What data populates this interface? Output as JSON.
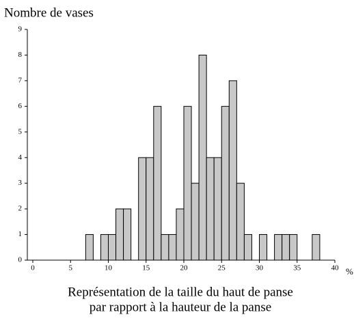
{
  "chart_data": {
    "type": "histogram",
    "ylabel": "Nombre de vases",
    "x_unit": "%",
    "xlabel": [
      "Représentation de la taille du haut de panse",
      "par rapport à la hauteur  de la panse"
    ],
    "bins": [
      0,
      1,
      2,
      3,
      4,
      5,
      6,
      7,
      8,
      9,
      10,
      11,
      12,
      13,
      14,
      15,
      16,
      17,
      18,
      19,
      20,
      21,
      22,
      23,
      24,
      25,
      26,
      27,
      28,
      29,
      30,
      31,
      32,
      33,
      34,
      35,
      36,
      37,
      38,
      39,
      40
    ],
    "values": [
      0,
      0,
      0,
      0,
      0,
      0,
      0,
      1,
      0,
      1,
      1,
      2,
      2,
      0,
      4,
      4,
      6,
      1,
      1,
      2,
      6,
      3,
      8,
      4,
      4,
      6,
      7,
      3,
      1,
      0,
      1,
      0,
      1,
      1,
      1,
      0,
      0,
      1,
      0,
      0
    ],
    "color": "#c8c8c8",
    "xlim": [
      0,
      40
    ],
    "xticks": [
      0,
      5,
      10,
      15,
      20,
      25,
      30,
      35,
      40
    ],
    "ylim": [
      0,
      9
    ],
    "yticks": [
      0,
      1,
      2,
      3,
      4,
      5,
      6,
      7,
      8,
      9
    ],
    "grid": false
  }
}
